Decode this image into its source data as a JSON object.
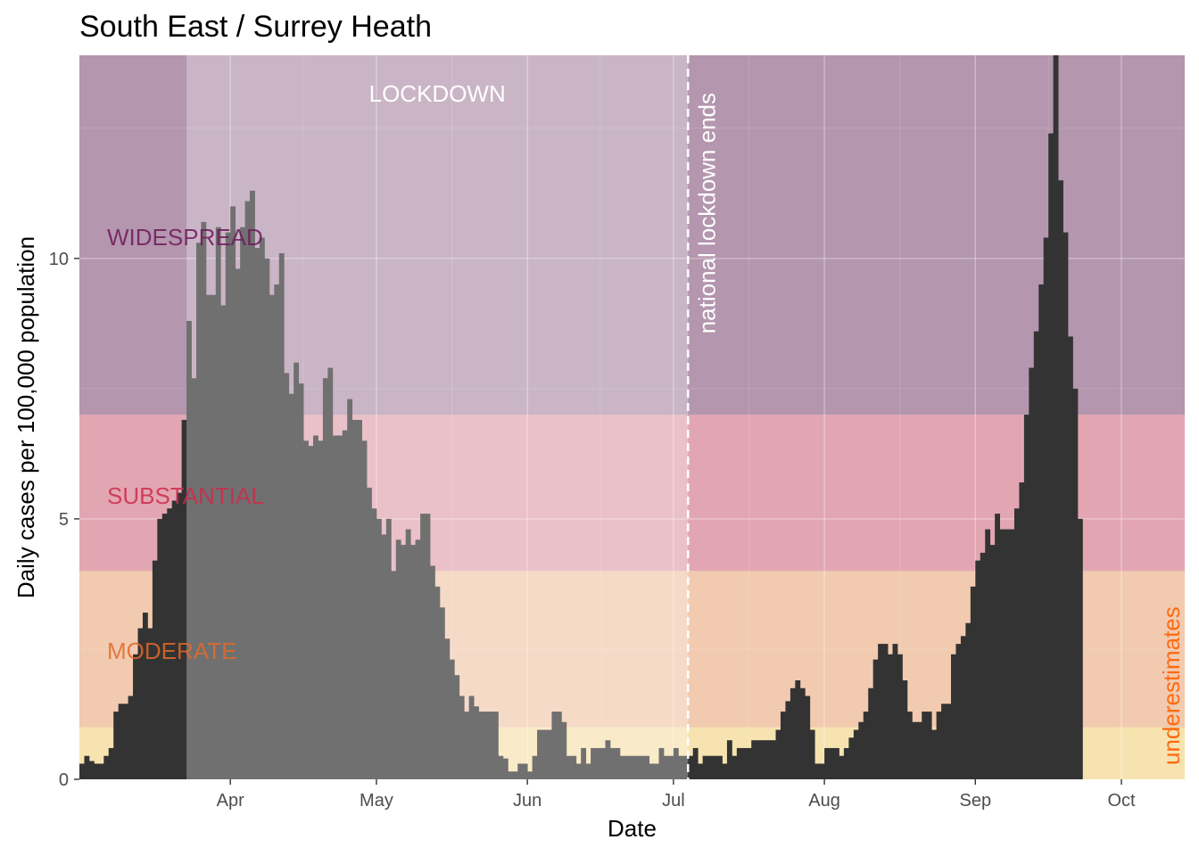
{
  "chart_data": {
    "type": "bar",
    "title": "South East / Surrey Heath",
    "xlabel": "Date",
    "ylabel": "Daily cases per 100,000 population",
    "x_start": "2020-03-01",
    "x_end": "2020-10-14",
    "ylim": [
      0,
      13.9
    ],
    "y_ticks": [
      {
        "value": 0,
        "label": "0"
      },
      {
        "value": 5,
        "label": "5"
      },
      {
        "value": 10,
        "label": "10"
      }
    ],
    "x_ticks": [
      {
        "date": "2020-04-01",
        "label": "Apr"
      },
      {
        "date": "2020-05-01",
        "label": "May"
      },
      {
        "date": "2020-06-01",
        "label": "Jun"
      },
      {
        "date": "2020-07-01",
        "label": "Jul"
      },
      {
        "date": "2020-08-01",
        "label": "Aug"
      },
      {
        "date": "2020-09-01",
        "label": "Sep"
      },
      {
        "date": "2020-10-01",
        "label": "Oct"
      }
    ],
    "grid": true,
    "bands": [
      {
        "label": "",
        "from": 0,
        "to": 1,
        "color": "#f0d07a"
      },
      {
        "label": "MODERATE",
        "from": 1,
        "to": 4,
        "color": "#e8a77a",
        "label_color": "#e06a2a"
      },
      {
        "label": "SUBSTANTIAL",
        "from": 4,
        "to": 7,
        "color": "#cf6b7e",
        "label_color": "#cc2a4a"
      },
      {
        "label": "WIDESPREAD",
        "from": 7,
        "to": 13.9,
        "color": "#825078",
        "label_color": "#6e1a5a"
      }
    ],
    "lockdown": {
      "label": "LOCKDOWN",
      "from": "2020-03-23",
      "to": "2020-07-04"
    },
    "events": [
      {
        "date": "2020-07-04",
        "label": "national lockdown ends"
      }
    ],
    "underestimate_note": {
      "label": "underestimates",
      "color": "#ff6a10"
    },
    "series": [
      {
        "color": "#333333",
        "start": "2020-03-01",
        "values": [
          0.3,
          0.45,
          0.35,
          0.3,
          0.3,
          0.45,
          0.6,
          1.3,
          1.45,
          1.45,
          1.6,
          2.4,
          2.9,
          3.2,
          2.9,
          4.2,
          5.0,
          5.1,
          5.2,
          5.35,
          5.5,
          6.9,
          8.8,
          7.7,
          10.3,
          10.7,
          9.3,
          9.3,
          10.6,
          9.1,
          10.5,
          11.0,
          9.8,
          10.6,
          11.1,
          11.3,
          10.2,
          10.4,
          10.0,
          9.3,
          9.5,
          10.1,
          7.8,
          7.4,
          8.0,
          7.6,
          6.5,
          6.4,
          6.6,
          6.5,
          7.7,
          7.9,
          6.6,
          6.6,
          6.7,
          7.3,
          6.9,
          6.9,
          6.5,
          5.6,
          5.2,
          5.0,
          4.7,
          5.0,
          4.0,
          4.6,
          4.5,
          4.8,
          4.5,
          4.6,
          5.1,
          5.1,
          4.1,
          3.7,
          3.3,
          2.7,
          2.3,
          2.0,
          1.6,
          1.3,
          1.6,
          1.4,
          1.3,
          1.3,
          1.3,
          1.3,
          0.45,
          0.4,
          0.15,
          0.15,
          0.3,
          0.3,
          0.15,
          0.45,
          0.95,
          0.95,
          0.95,
          1.3,
          1.3,
          1.1,
          0.45,
          0.45,
          0.3,
          0.6,
          0.3,
          0.6,
          0.6,
          0.6,
          0.75,
          0.6,
          0.6,
          0.45,
          0.45,
          0.45,
          0.45,
          0.45,
          0.45,
          0.3,
          0.3,
          0.6,
          0.45,
          0.45,
          0.6,
          0.45,
          0.45,
          0.45,
          0.6,
          0.3,
          0.45,
          0.45,
          0.45,
          0.45,
          0.3,
          0.75,
          0.45,
          0.6,
          0.6,
          0.6,
          0.75,
          0.75,
          0.75,
          0.75,
          0.75,
          0.95,
          1.3,
          1.5,
          1.75,
          1.9,
          1.75,
          1.6,
          0.95,
          0.3,
          0.3,
          0.6,
          0.6,
          0.6,
          0.45,
          0.6,
          0.8,
          0.95,
          1.1,
          1.3,
          1.75,
          2.3,
          2.6,
          2.6,
          2.4,
          2.6,
          2.4,
          1.9,
          1.3,
          1.1,
          1.1,
          1.3,
          1.3,
          0.95,
          1.3,
          1.45,
          1.45,
          2.4,
          2.6,
          2.75,
          3.0,
          3.7,
          4.2,
          4.35,
          4.8,
          4.5,
          5.1,
          4.8,
          4.8,
          4.8,
          5.2,
          5.7,
          7.0,
          7.9,
          8.6,
          9.5,
          10.4,
          12.4,
          13.9,
          11.5,
          10.5,
          8.5,
          7.5,
          5.0
        ]
      }
    ]
  }
}
